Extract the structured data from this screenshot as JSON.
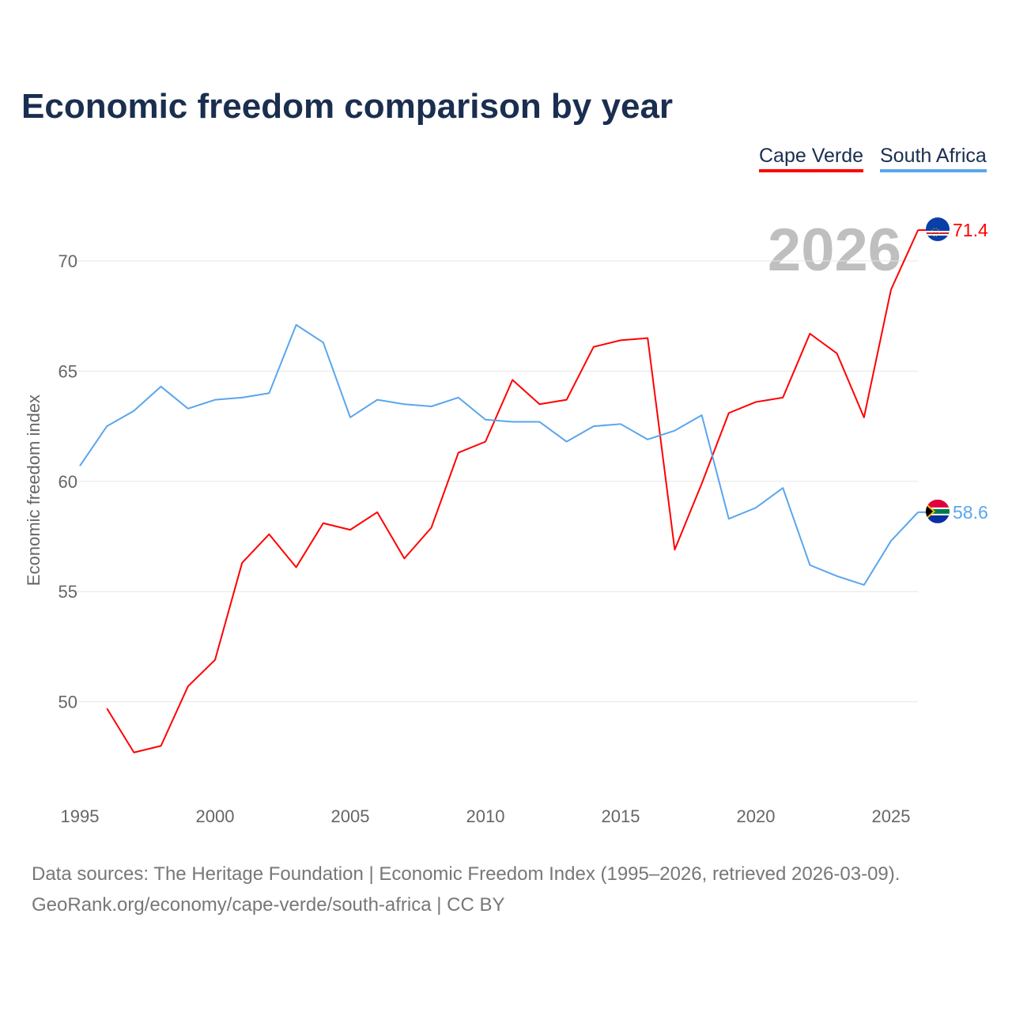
{
  "chart_data": {
    "type": "line",
    "title": "Economic freedom comparison by year",
    "xlabel": "",
    "ylabel": "Economic freedom index",
    "xlim": [
      1995,
      2026
    ],
    "ylim": [
      45,
      72
    ],
    "x_ticks": [
      "1995",
      "2000",
      "2005",
      "2010",
      "2015",
      "2020",
      "2025"
    ],
    "y_ticks": [
      "50",
      "55",
      "60",
      "65",
      "70"
    ],
    "grid": true,
    "legend_position": "top-right",
    "year_label": "2026",
    "series": [
      {
        "name": "Cape Verde",
        "color": "#ff0000",
        "end_label": "71.4",
        "x": [
          1996,
          1997,
          1998,
          1999,
          2000,
          2001,
          2002,
          2003,
          2004,
          2005,
          2006,
          2007,
          2008,
          2009,
          2010,
          2011,
          2012,
          2013,
          2014,
          2015,
          2016,
          2017,
          2018,
          2019,
          2020,
          2021,
          2022,
          2023,
          2024,
          2025,
          2026
        ],
        "values": [
          49.7,
          47.7,
          48.0,
          50.7,
          51.9,
          56.3,
          57.6,
          56.1,
          58.1,
          57.8,
          58.6,
          56.5,
          57.9,
          61.3,
          61.8,
          64.6,
          63.5,
          63.7,
          66.1,
          66.4,
          66.5,
          56.9,
          59.9,
          63.1,
          63.6,
          63.8,
          66.7,
          65.8,
          62.9,
          68.7,
          71.4
        ]
      },
      {
        "name": "South Africa",
        "color": "#5aa5ee",
        "end_label": "58.6",
        "x": [
          1995,
          1996,
          1997,
          1998,
          1999,
          2000,
          2001,
          2002,
          2003,
          2004,
          2005,
          2006,
          2007,
          2008,
          2009,
          2010,
          2011,
          2012,
          2013,
          2014,
          2015,
          2016,
          2017,
          2018,
          2019,
          2020,
          2021,
          2022,
          2023,
          2024,
          2025,
          2026
        ],
        "values": [
          60.7,
          62.5,
          63.2,
          64.3,
          63.3,
          63.7,
          63.8,
          64.0,
          67.1,
          66.3,
          62.9,
          63.7,
          63.5,
          63.4,
          63.8,
          62.8,
          62.7,
          62.7,
          61.8,
          62.5,
          62.6,
          61.9,
          62.3,
          63.0,
          58.3,
          58.8,
          59.7,
          56.2,
          55.7,
          55.3,
          57.3,
          58.6
        ]
      }
    ]
  },
  "footer": {
    "line1": "Data sources: The Heritage Foundation | Economic Freedom Index (1995–2026, retrieved 2026-03-09).",
    "line2": "GeoRank.org/economy/cape-verde/south-africa | CC BY"
  }
}
